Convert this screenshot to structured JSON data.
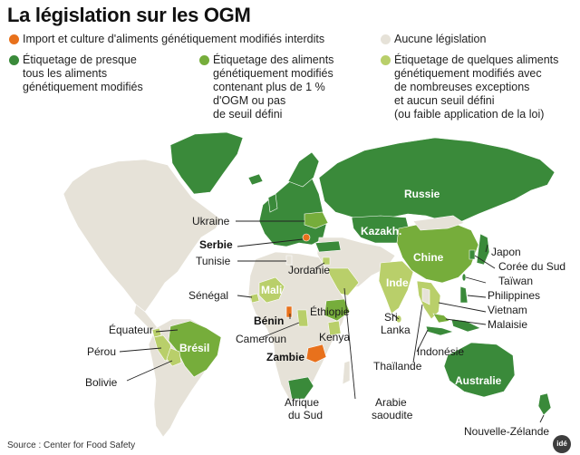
{
  "title": "La législation sur les OGM",
  "colors": {
    "interdit": "#e8711c",
    "aucune": "#e6e2d8",
    "presque_tous": "#3a8a3a",
    "plus_1pct": "#76ad3b",
    "quelques": "#b9cf6a",
    "ocean": "#ffffff"
  },
  "legend": [
    {
      "key": "interdit",
      "text": "Import et culture d'aliments génétiquement modifiés interdits"
    },
    {
      "key": "aucune",
      "text": "Aucune législation"
    },
    {
      "key": "presque_tous",
      "text": "Étiquetage de presque\ntous les aliments\ngénétiquement modifiés"
    },
    {
      "key": "plus_1pct",
      "text": "Étiquetage des aliments\ngénétiquement modifiés\ncontenant plus de 1 %\nd'OGM ou pas\nde seuil défini"
    },
    {
      "key": "quelques",
      "text": "Étiquetage de quelques aliments\ngénétiquement modifiés avec\nde nombreuses exceptions\net aucun seuil défini\n(ou faible application de la loi)"
    }
  ],
  "labels": {
    "russie": "Russie",
    "kazakh": "Kazakh.",
    "chine": "Chine",
    "inde": "Inde",
    "australie": "Australie",
    "bresil": "Brésil",
    "mali": "Mali",
    "ethiopie": "Éthiopie",
    "ukraine": "Ukraine",
    "serbie": "Serbie",
    "tunisie": "Tunisie",
    "jordanie": "Jordanie",
    "senegal": "Sénégal",
    "benin": "Bénin",
    "cameroun": "Cameroun",
    "kenya": "Kenya",
    "zambie": "Zambie",
    "afrique_du_sud_1": "Afrique",
    "afrique_du_sud_2": "du Sud",
    "arabie_1": "Arabie",
    "arabie_2": "saoudite",
    "equateur": "Équateur",
    "perou": "Pérou",
    "bolivie": "Bolivie",
    "japon": "Japon",
    "coree": "Corée du Sud",
    "taiwan": "Taïwan",
    "philippines": "Philippines",
    "vietnam": "Vietnam",
    "malaisie": "Malaisie",
    "sri_lanka_1": "Sri",
    "sri_lanka_2": "Lanka",
    "indonesie": "Indonésie",
    "thailande": "Thaïlande",
    "nz": "Nouvelle-Zélande"
  },
  "source": "Source : Center for Food Safety",
  "logo": "idé"
}
